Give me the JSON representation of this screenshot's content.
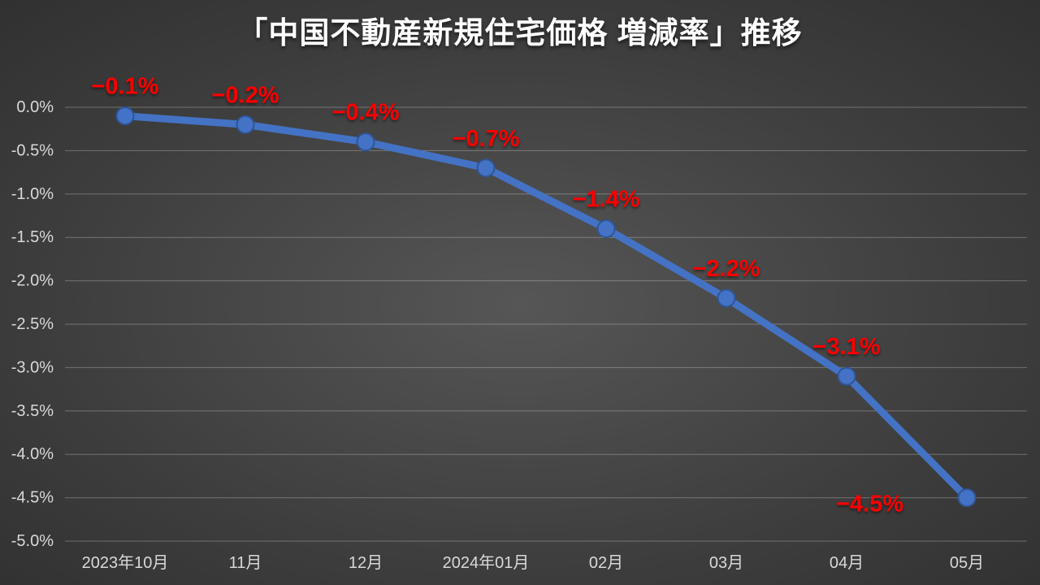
{
  "background": {
    "center_color": "#565656",
    "mid_color": "#3d3d3d",
    "edge_color": "#262626"
  },
  "chart_data": {
    "type": "line",
    "title": "「中国不動産新規住宅価格 増減率」推移",
    "categories": [
      "2023年10月",
      "11月",
      "12月",
      "2024年01月",
      "02月",
      "03月",
      "04月",
      "05月"
    ],
    "values": [
      -0.1,
      -0.2,
      -0.4,
      -0.7,
      -1.4,
      -2.2,
      -3.1,
      -4.5
    ],
    "data_labels": [
      "−0.1%",
      "−0.2%",
      "−0.4%",
      "−0.7%",
      "−1.4%",
      "−2.2%",
      "−3.1%",
      "−4.5%"
    ],
    "label_positions": [
      "above",
      "above",
      "above",
      "above",
      "above",
      "above",
      "above",
      "left"
    ],
    "y_ticks": [
      "0.0%",
      "-0.5%",
      "-1.0%",
      "-1.5%",
      "-2.0%",
      "-2.5%",
      "-3.0%",
      "-3.5%",
      "-4.0%",
      "-4.5%",
      "-5.0%"
    ],
    "ylim": [
      0,
      -5
    ],
    "xlabel": "",
    "ylabel": "",
    "grid": true,
    "legend": "none",
    "colors": {
      "line": "#4472C4",
      "marker_fill": "#4472C4",
      "marker_edge": "#2F5597",
      "data_label": "#FF0000",
      "axis_text": "#D9D9D9",
      "gridline": "rgba(255,255,255,0.28)",
      "title": "#FFFFFF"
    }
  }
}
